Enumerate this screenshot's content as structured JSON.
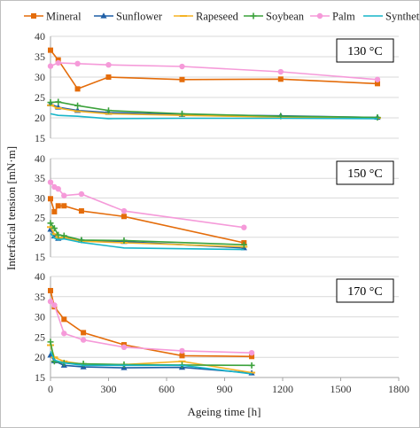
{
  "chart_data": {
    "type": "line",
    "xlabel": "Ageing time [h]",
    "ylabel": "Interfacial tension [mN·m]",
    "x_ticks": [
      0,
      300,
      600,
      900,
      1200,
      1500,
      1800
    ],
    "xlim": [
      0,
      1800
    ],
    "legend": {
      "placement": "top"
    },
    "grid": "horizontal",
    "panels": [
      {
        "label": "130 °C",
        "ylim": [
          15,
          40
        ],
        "y_ticks": [
          15,
          20,
          25,
          30,
          35,
          40
        ],
        "series": [
          {
            "name": "Mineral",
            "color": "#e46c0a",
            "marker": "square",
            "x": [
              0,
              40,
              140,
              300,
              680,
              1190,
              1690
            ],
            "y": [
              36.6,
              34.2,
              27.1,
              30.0,
              29.4,
              29.5,
              28.4
            ]
          },
          {
            "name": "Sunflower",
            "color": "#1f5fa6",
            "marker": "triangle",
            "x": [
              0,
              40,
              140,
              300,
              680,
              1190,
              1690
            ],
            "y": [
              23.4,
              22.6,
              21.8,
              21.3,
              20.8,
              20.5,
              20.1
            ]
          },
          {
            "name": "Rapeseed",
            "color": "#f5b324",
            "marker": "dash",
            "x": [
              0,
              40,
              140,
              300,
              680,
              1190,
              1690
            ],
            "y": [
              23.1,
              22.4,
              21.6,
              21.0,
              20.6,
              20.2,
              20.0
            ]
          },
          {
            "name": "Soybean",
            "color": "#3ca23c",
            "marker": "plus",
            "x": [
              0,
              40,
              140,
              300,
              680,
              1190,
              1690
            ],
            "y": [
              23.8,
              23.9,
              23.0,
              21.8,
              21.0,
              20.4,
              20.1
            ]
          },
          {
            "name": "Palm",
            "color": "#f59ad9",
            "marker": "circle",
            "x": [
              0,
              40,
              140,
              300,
              680,
              1190,
              1690
            ],
            "y": [
              32.7,
              33.5,
              33.3,
              33.0,
              32.6,
              31.3,
              29.4
            ]
          },
          {
            "name": "Synthetic",
            "color": "#17b5c9",
            "marker": "none",
            "x": [
              0,
              40,
              140,
              300,
              680,
              1190,
              1690
            ],
            "y": [
              21.0,
              20.6,
              20.4,
              19.8,
              19.9,
              19.9,
              19.8
            ]
          }
        ]
      },
      {
        "label": "150 °C",
        "ylim": [
          15,
          40
        ],
        "y_ticks": [
          15,
          20,
          25,
          30,
          35,
          40
        ],
        "series": [
          {
            "name": "Mineral",
            "color": "#e46c0a",
            "marker": "square",
            "x": [
              0,
              20,
              40,
              70,
              160,
              380,
              1000
            ],
            "y": [
              29.8,
              26.5,
              28.0,
              28.0,
              26.7,
              25.3,
              18.6
            ]
          },
          {
            "name": "Sunflower",
            "color": "#1f5fa6",
            "marker": "triangle",
            "x": [
              0,
              20,
              40,
              70,
              160,
              380,
              1000
            ],
            "y": [
              22.0,
              20.3,
              19.7,
              20.0,
              19.2,
              18.9,
              17.3
            ]
          },
          {
            "name": "Rapeseed",
            "color": "#f5b324",
            "marker": "dash",
            "x": [
              0,
              20,
              40,
              70,
              160,
              380,
              1000
            ],
            "y": [
              22.6,
              20.8,
              19.9,
              19.9,
              19.0,
              18.6,
              17.6
            ]
          },
          {
            "name": "Soybean",
            "color": "#3ca23c",
            "marker": "plus",
            "x": [
              0,
              20,
              40,
              70,
              160,
              380,
              1000
            ],
            "y": [
              23.6,
              22.3,
              20.6,
              20.4,
              19.3,
              19.2,
              18.1
            ]
          },
          {
            "name": "Palm",
            "color": "#f59ad9",
            "marker": "circle",
            "x": [
              0,
              20,
              40,
              70,
              160,
              380,
              1000
            ],
            "y": [
              34.0,
              32.8,
              32.3,
              30.6,
              31.0,
              26.7,
              22.5
            ]
          },
          {
            "name": "Synthetic",
            "color": "#17b5c9",
            "marker": "none",
            "x": [
              0,
              20,
              40,
              70,
              160,
              380,
              1000
            ],
            "y": [
              21.0,
              19.8,
              19.4,
              19.6,
              18.7,
              17.3,
              16.9
            ]
          }
        ]
      },
      {
        "label": "170 °C",
        "ylim": [
          15,
          40
        ],
        "y_ticks": [
          15,
          20,
          25,
          30,
          35,
          40
        ],
        "series": [
          {
            "name": "Mineral",
            "color": "#e46c0a",
            "marker": "square",
            "x": [
              0,
              20,
              70,
              170,
              380,
              680,
              1040
            ],
            "y": [
              36.5,
              32.5,
              29.4,
              26.1,
              23.1,
              20.4,
              20.2
            ]
          },
          {
            "name": "Sunflower",
            "color": "#1f5fa6",
            "marker": "triangle",
            "x": [
              0,
              20,
              70,
              170,
              380,
              680,
              1040
            ],
            "y": [
              20.5,
              19.1,
              18.0,
              17.6,
              17.4,
              17.5,
              16.1
            ]
          },
          {
            "name": "Rapeseed",
            "color": "#f5b324",
            "marker": "dash",
            "x": [
              0,
              20,
              70,
              170,
              380,
              680,
              1040
            ],
            "y": [
              23.0,
              20.0,
              19.0,
              18.3,
              18.2,
              19.0,
              16.2
            ]
          },
          {
            "name": "Soybean",
            "color": "#3ca23c",
            "marker": "plus",
            "x": [
              0,
              20,
              70,
              170,
              380,
              680,
              1040
            ],
            "y": [
              23.8,
              19.0,
              18.6,
              18.4,
              18.2,
              18.1,
              18.0
            ]
          },
          {
            "name": "Palm",
            "color": "#f59ad9",
            "marker": "circle",
            "x": [
              0,
              20,
              70,
              170,
              380,
              680,
              1040
            ],
            "y": [
              33.8,
              32.9,
              25.9,
              24.3,
              22.5,
              21.6,
              21.1
            ]
          },
          {
            "name": "Synthetic",
            "color": "#17b5c9",
            "marker": "none",
            "x": [
              0,
              20,
              70,
              170,
              380,
              680,
              1040
            ],
            "y": [
              21.5,
              19.3,
              18.6,
              18.0,
              18.0,
              18.0,
              15.9
            ]
          }
        ]
      }
    ]
  }
}
